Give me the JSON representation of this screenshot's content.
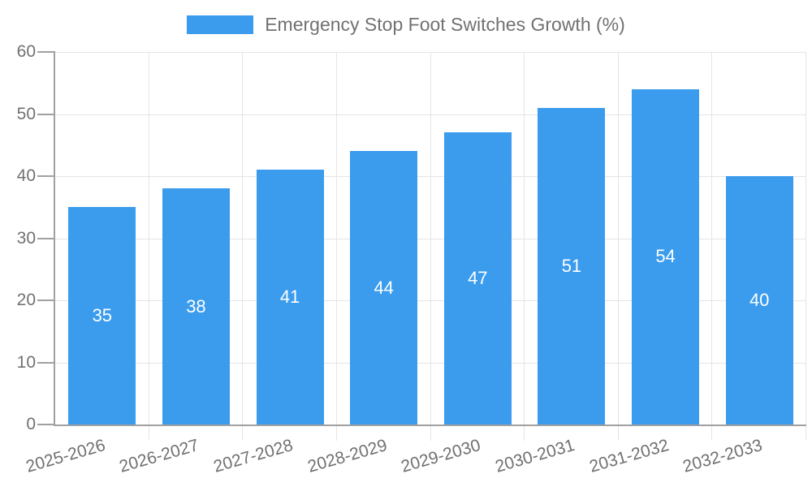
{
  "chart_data": {
    "type": "bar",
    "title": "Emergency Stop Foot Switches Growth (%)",
    "legend_entries": [
      "Emergency Stop Foot Switches Growth (%)"
    ],
    "legend_position": "top-center",
    "categories": [
      "2025-2026",
      "2026-2027",
      "2027-2028",
      "2028-2029",
      "2029-2030",
      "2030-2031",
      "2031-2032",
      "2032-2033"
    ],
    "values": [
      35,
      38,
      41,
      44,
      47,
      51,
      54,
      40
    ],
    "bar_value_labels": [
      "35",
      "38",
      "41",
      "44",
      "47",
      "51",
      "54",
      "40"
    ],
    "xlabel": "",
    "ylabel": "",
    "ylim": [
      0,
      60
    ],
    "y_ticks": [
      0,
      10,
      20,
      30,
      40,
      50,
      60
    ],
    "grid": true,
    "x_label_rotation_deg": -16
  },
  "colors": {
    "bar": "#3b9cee",
    "bar_label": "#ffffff",
    "grid_line": "#e5e5e5",
    "axis_line": "#a0a0a0",
    "tick_text": "#717171",
    "background": "#ffffff"
  }
}
